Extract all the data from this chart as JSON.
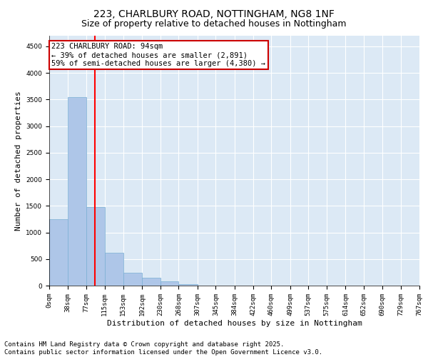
{
  "title_line1": "223, CHARLBURY ROAD, NOTTINGHAM, NG8 1NF",
  "title_line2": "Size of property relative to detached houses in Nottingham",
  "xlabel": "Distribution of detached houses by size in Nottingham",
  "ylabel": "Number of detached properties",
  "bar_color": "#aec6e8",
  "bar_edge_color": "#7aafd4",
  "bar_left_edges": [
    0,
    38,
    77,
    115,
    153,
    192,
    230,
    268,
    307,
    345,
    384,
    422,
    460,
    499,
    537,
    575,
    614,
    652,
    690,
    729
  ],
  "bar_widths": [
    38,
    39,
    38,
    38,
    39,
    38,
    38,
    39,
    38,
    39,
    38,
    38,
    39,
    38,
    38,
    39,
    38,
    38,
    39,
    38
  ],
  "bar_heights": [
    1250,
    3550,
    1480,
    620,
    240,
    145,
    75,
    25,
    5,
    2,
    1,
    0,
    0,
    0,
    0,
    0,
    0,
    0,
    0,
    0
  ],
  "tick_labels": [
    "0sqm",
    "38sqm",
    "77sqm",
    "115sqm",
    "153sqm",
    "192sqm",
    "230sqm",
    "268sqm",
    "307sqm",
    "345sqm",
    "384sqm",
    "422sqm",
    "460sqm",
    "499sqm",
    "537sqm",
    "575sqm",
    "614sqm",
    "652sqm",
    "690sqm",
    "729sqm",
    "767sqm"
  ],
  "red_line_x": 94,
  "annotation_text": "223 CHARLBURY ROAD: 94sqm\n← 39% of detached houses are smaller (2,891)\n59% of semi-detached houses are larger (4,380) →",
  "annotation_box_color": "#ffffff",
  "annotation_box_edge_color": "#cc0000",
  "ylim": [
    0,
    4700
  ],
  "yticks": [
    0,
    500,
    1000,
    1500,
    2000,
    2500,
    3000,
    3500,
    4000,
    4500
  ],
  "background_color": "#dce9f5",
  "footer_text": "Contains HM Land Registry data © Crown copyright and database right 2025.\nContains public sector information licensed under the Open Government Licence v3.0.",
  "title_fontsize": 10,
  "subtitle_fontsize": 9,
  "axis_label_fontsize": 8,
  "tick_fontsize": 6.5,
  "annotation_fontsize": 7.5,
  "footer_fontsize": 6.5
}
